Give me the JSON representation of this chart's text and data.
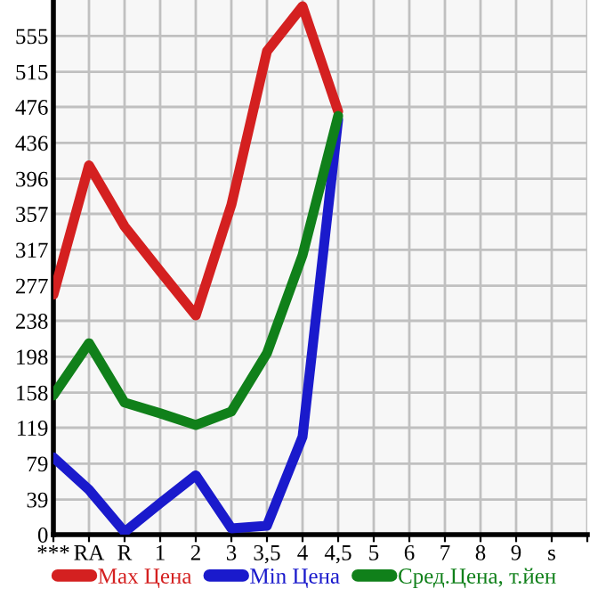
{
  "chart_data": {
    "type": "line",
    "categories": [
      "***",
      "RA",
      "R",
      "1",
      "2",
      "3",
      "3,5",
      "4",
      "4,5",
      "5",
      "6",
      "7",
      "8",
      "9",
      "s"
    ],
    "series": [
      {
        "name": "Max Цена",
        "color": "#d42020",
        "values": [
          267,
          411,
          343,
          293,
          244,
          367,
          538,
          588,
          471,
          null,
          null,
          null,
          null,
          null,
          null
        ]
      },
      {
        "name": "Min Цена",
        "color": "#1a1acc",
        "values": [
          86,
          50,
          3,
          35,
          66,
          7,
          10,
          109,
          462,
          null,
          null,
          null,
          null,
          null,
          null
        ]
      },
      {
        "name": "Сред.Цена, т.йен",
        "color": "#10801a",
        "values": [
          155,
          213,
          147,
          135,
          122,
          137,
          202,
          311,
          466,
          null,
          null,
          null,
          null,
          null,
          null
        ]
      }
    ],
    "ylim": [
      0,
      595
    ],
    "yticks": [
      0,
      39,
      79,
      119,
      158,
      198,
      238,
      277,
      317,
      357,
      396,
      436,
      476,
      515,
      555
    ],
    "grid": true,
    "legend": "bottom",
    "marker": "none",
    "line_style": "solid"
  }
}
